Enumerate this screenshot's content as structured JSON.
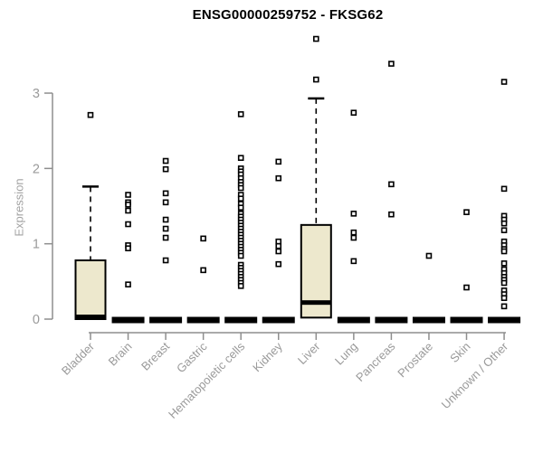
{
  "title": "ENSG00000259752 - FKSG62",
  "ylabel": "Expression",
  "colors": {
    "box_fill": "#EDE8CD",
    "box_stroke": "#000000",
    "median": "#000000",
    "outlier_stroke": "#000000",
    "outlier_fill": "#FFFFFF",
    "axis": "#8E8E8E",
    "tick_label": "#9A9A9A",
    "title": "#000000"
  },
  "chart_data": {
    "type": "boxplot",
    "title": "ENSG00000259752 - FKSG62",
    "xlabel": "",
    "ylabel": "Expression",
    "yticks": [
      0,
      1,
      2,
      3
    ],
    "ylim": [
      0,
      3.8
    ],
    "grid": false,
    "categories": [
      "Bladder",
      "Brain",
      "Breast",
      "Gastric",
      "Hematopoietic cells",
      "Kidney",
      "Liver",
      "Lung",
      "Pancreas",
      "Prostate",
      "Skin",
      "Unknown / Other"
    ],
    "boxes": [
      {
        "category": "Bladder",
        "whisker_low": 0,
        "q1": 0,
        "median": 0.03,
        "q3": 0.78,
        "whisker_high": 1.76,
        "outliers": [
          2.71
        ]
      },
      {
        "category": "Brain",
        "whisker_low": 0,
        "q1": 0,
        "median": 0,
        "q3": 0,
        "whisker_high": 0,
        "outliers": [
          1.65,
          1.55,
          1.52,
          1.44,
          1.26,
          0.98,
          0.94,
          0.46
        ]
      },
      {
        "category": "Breast",
        "whisker_low": 0,
        "q1": 0,
        "median": 0,
        "q3": 0,
        "whisker_high": 0,
        "outliers": [
          2.1,
          1.99,
          1.67,
          1.55,
          1.32,
          1.2,
          1.08,
          0.78
        ]
      },
      {
        "category": "Gastric",
        "whisker_low": 0,
        "q1": 0,
        "median": 0,
        "q3": 0,
        "whisker_high": 0,
        "outliers": [
          1.07,
          0.65
        ]
      },
      {
        "category": "Hematopoietic cells",
        "whisker_low": 0,
        "q1": 0,
        "median": 0,
        "q3": 0,
        "whisker_high": 0,
        "outliers": [
          2.72,
          2.14,
          2.0,
          1.96,
          1.92,
          1.87,
          1.82,
          1.78,
          1.74,
          1.65,
          1.6,
          1.53,
          1.48,
          1.4,
          1.36,
          1.32,
          1.28,
          1.24,
          1.2,
          1.16,
          1.12,
          1.08,
          1.04,
          1.0,
          0.96,
          0.92,
          0.88,
          0.84,
          0.72,
          0.68,
          0.64,
          0.6,
          0.56,
          0.52,
          0.48,
          0.44
        ]
      },
      {
        "category": "Kidney",
        "whisker_low": 0,
        "q1": 0,
        "median": 0,
        "q3": 0,
        "whisker_high": 0,
        "outliers": [
          2.09,
          1.87,
          1.03,
          0.97,
          0.9,
          0.73
        ]
      },
      {
        "category": "Liver",
        "whisker_low": 0,
        "q1": 0.02,
        "median": 0.22,
        "q3": 1.25,
        "whisker_high": 2.93,
        "outliers": [
          3.72,
          3.18
        ]
      },
      {
        "category": "Lung",
        "whisker_low": 0,
        "q1": 0,
        "median": 0,
        "q3": 0,
        "whisker_high": 0,
        "outliers": [
          2.74,
          1.4,
          1.15,
          1.08,
          0.77
        ]
      },
      {
        "category": "Pancreas",
        "whisker_low": 0,
        "q1": 0,
        "median": 0,
        "q3": 0,
        "whisker_high": 0,
        "outliers": [
          3.39,
          1.79,
          1.39
        ]
      },
      {
        "category": "Prostate",
        "whisker_low": 0,
        "q1": 0,
        "median": 0,
        "q3": 0,
        "whisker_high": 0,
        "outliers": [
          0.84
        ]
      },
      {
        "category": "Skin",
        "whisker_low": 0,
        "q1": 0,
        "median": 0,
        "q3": 0,
        "whisker_high": 0,
        "outliers": [
          1.42,
          0.42
        ]
      },
      {
        "category": "Unknown / Other",
        "whisker_low": 0,
        "q1": 0,
        "median": 0,
        "q3": 0,
        "whisker_high": 0,
        "outliers": [
          3.15,
          1.73,
          1.37,
          1.32,
          1.27,
          1.18,
          1.03,
          0.98,
          0.93,
          0.9,
          0.74,
          0.66,
          0.61,
          0.56,
          0.52,
          0.48,
          0.38,
          0.33,
          0.28,
          0.17
        ]
      }
    ]
  }
}
